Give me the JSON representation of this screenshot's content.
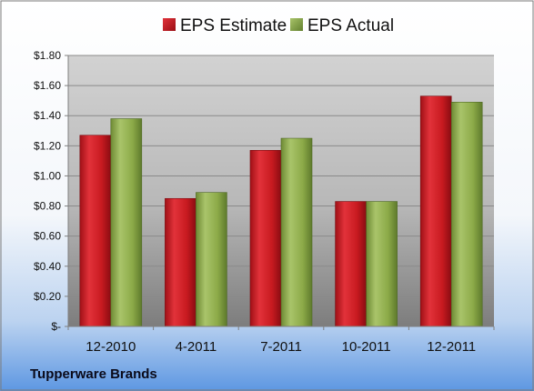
{
  "chart_data": {
    "type": "bar",
    "categories": [
      "12-2010",
      "4-2011",
      "7-2011",
      "10-2011",
      "12-2011"
    ],
    "series": [
      {
        "name": "EPS Estimate",
        "values": [
          1.27,
          0.85,
          1.17,
          0.83,
          1.53
        ],
        "color": "#c8181e"
      },
      {
        "name": "EPS Actual",
        "values": [
          1.38,
          0.89,
          1.25,
          0.83,
          1.49
        ],
        "color": "#8caa48"
      }
    ],
    "ylim": [
      0,
      1.8
    ],
    "yticks": [
      {
        "value": 0,
        "label": "$-"
      },
      {
        "value": 0.2,
        "label": "$0.20"
      },
      {
        "value": 0.4,
        "label": "$0.40"
      },
      {
        "value": 0.6,
        "label": "$0.60"
      },
      {
        "value": 0.8,
        "label": "$0.80"
      },
      {
        "value": 1.0,
        "label": "$1.00"
      },
      {
        "value": 1.2,
        "label": "$1.20"
      },
      {
        "value": 1.4,
        "label": "$1.40"
      },
      {
        "value": 1.6,
        "label": "$1.60"
      },
      {
        "value": 1.8,
        "label": "$1.80"
      }
    ],
    "grid": true,
    "legend_position": "top",
    "caption": "Tupperware Brands"
  }
}
